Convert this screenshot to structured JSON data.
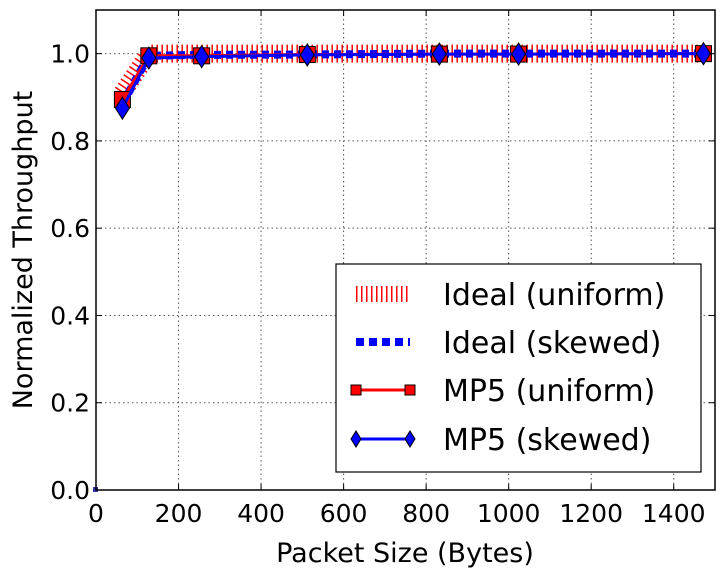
{
  "chart_data": {
    "type": "line",
    "title": "",
    "xlabel": "Packet Size (Bytes)",
    "ylabel": "Normalized Throughput",
    "xlim": [
      0,
      1500
    ],
    "ylim": [
      0.0,
      1.1
    ],
    "x_ticks": [
      0,
      200,
      400,
      600,
      800,
      1000,
      1200,
      1400
    ],
    "y_ticks": [
      0.0,
      0.2,
      0.4,
      0.6,
      0.8,
      1.0
    ],
    "y_tick_labels": [
      "0.0",
      "0.2",
      "0.4",
      "0.6",
      "0.8",
      "1.0"
    ],
    "grid": true,
    "legend_position": "bottom-right",
    "series": [
      {
        "name": "Ideal (uniform)",
        "style": "hatched-dash",
        "color": "#ff0000",
        "x": [
          64,
          128,
          256,
          512,
          832,
          1024,
          1472
        ],
        "y": [
          0.91,
          1.0,
          1.0,
          1.0,
          1.0,
          1.0,
          1.0
        ]
      },
      {
        "name": "Ideal (skewed)",
        "style": "dotted",
        "color": "#0000ff",
        "x": [
          64,
          128,
          256,
          512,
          832,
          1024,
          1472
        ],
        "y": [
          0.885,
          0.995,
          0.997,
          0.998,
          1.0,
          1.0,
          1.0
        ]
      },
      {
        "name": "MP5 (uniform)",
        "style": "line-square",
        "color": "#ff0000",
        "x": [
          64,
          128,
          256,
          512,
          832,
          1024,
          1472
        ],
        "y": [
          0.895,
          0.995,
          0.995,
          0.998,
          0.999,
          0.999,
          1.0
        ]
      },
      {
        "name": "MP5 (skewed)",
        "style": "line-diamond",
        "color": "#0000ff",
        "x": [
          64,
          128,
          256,
          512,
          832,
          1024,
          1472
        ],
        "y": [
          0.875,
          0.99,
          0.993,
          0.997,
          0.999,
          0.999,
          1.0
        ]
      }
    ]
  }
}
